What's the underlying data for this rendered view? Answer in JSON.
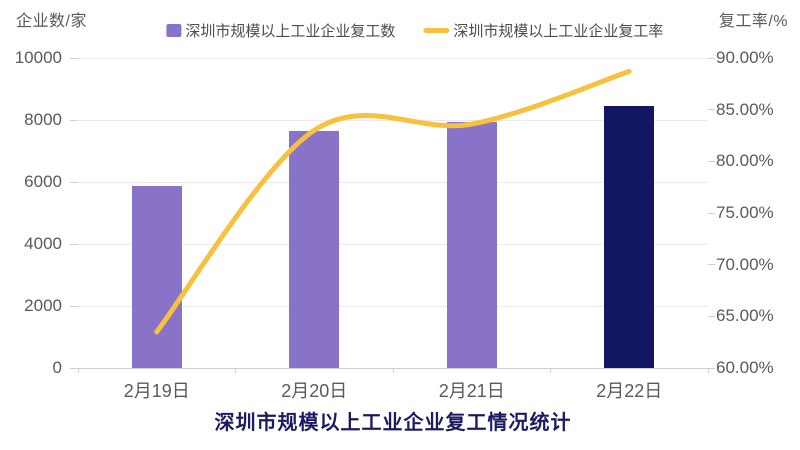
{
  "chart_data": {
    "type": "combo-bar-line",
    "title": "深圳市规模以上工业企业复工情况统计",
    "categories": [
      "2月19日",
      "2月20日",
      "2月21日",
      "2月22日"
    ],
    "series": [
      {
        "name": "深圳市规模以上工业企业复工数",
        "type": "bar",
        "axis": "left",
        "values": [
          5870,
          7650,
          7950,
          8460
        ],
        "bar_colors": [
          "#8973C8",
          "#8973C8",
          "#8973C8",
          "#131663"
        ]
      },
      {
        "name": "深圳市规模以上工业企业复工率",
        "type": "line",
        "axis": "right",
        "unit": "%",
        "values": [
          63.5,
          83.0,
          83.6,
          88.7
        ],
        "color": "#F7C13D",
        "smooth": true
      }
    ],
    "left_axis": {
      "title": "企业数/家",
      "min": 0,
      "max": 10000,
      "ticks": [
        "10000",
        "8000",
        "6000",
        "4000",
        "2000",
        "0"
      ]
    },
    "right_axis": {
      "title": "复工率/%",
      "min": 60,
      "max": 90,
      "ticks": [
        "90.00%",
        "85.00%",
        "80.00%",
        "75.00%",
        "70.00%",
        "65.00%",
        "60.00%"
      ]
    },
    "legend_position": "top",
    "grid": true,
    "colors": {
      "bar_purple": "#8973C8",
      "bar_navy": "#131663",
      "line_yellow": "#F7C13D",
      "grid_line": "#EBEBEB",
      "axis_line": "#CFCFCF",
      "tick_text": "#5A5A5A",
      "title_text": "#1C1A63",
      "legend_text": "#4D4D4D",
      "background": "#FFFFFF"
    }
  }
}
